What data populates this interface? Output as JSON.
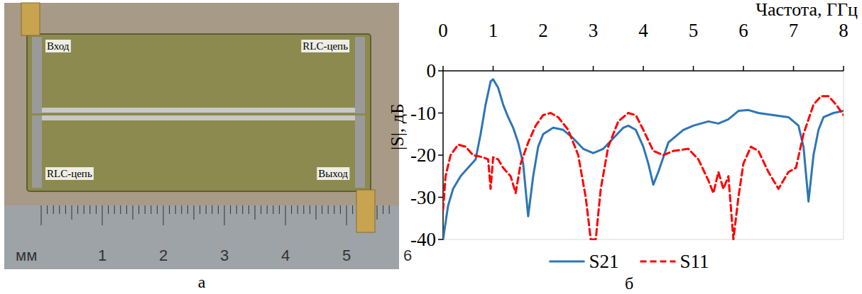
{
  "photo": {
    "panel_label": "а",
    "labels": [
      "Вход",
      "RLC-цепь",
      "RLC-цепь",
      "Выход"
    ],
    "ruler_labels": [
      "мм",
      "1",
      "2",
      "3",
      "4",
      "5",
      "6"
    ]
  },
  "chart_data": {
    "type": "line",
    "panel_label": "б",
    "x_label": "Частота, ГГц",
    "y_label": "|S|, дБ",
    "xlim": [
      0,
      8
    ],
    "xticks": [
      0,
      1,
      2,
      3,
      4,
      5,
      6,
      7,
      8
    ],
    "ylim": [
      -40,
      0
    ],
    "yticks": [
      0,
      -10,
      -20,
      -30,
      -40
    ],
    "grid": false,
    "legend": "bottom",
    "series": [
      {
        "name": "S21",
        "color": "#2e75b6",
        "line_style": "solid",
        "x": [
          0,
          0.1,
          0.2,
          0.35,
          0.5,
          0.65,
          0.75,
          0.85,
          0.95,
          1.0,
          1.1,
          1.2,
          1.3,
          1.4,
          1.5,
          1.6,
          1.7,
          1.8,
          1.9,
          2.0,
          2.2,
          2.4,
          2.6,
          2.8,
          3.0,
          3.2,
          3.4,
          3.6,
          3.7,
          3.85,
          4.0,
          4.1,
          4.2,
          4.3,
          4.5,
          4.8,
          5.0,
          5.3,
          5.5,
          5.7,
          5.9,
          6.1,
          6.3,
          6.6,
          6.9,
          7.1,
          7.2,
          7.3,
          7.4,
          7.5,
          7.6,
          7.8,
          8.0
        ],
        "values": [
          -40,
          -32,
          -28,
          -25,
          -23,
          -21,
          -15,
          -8,
          -2.5,
          -2,
          -4,
          -8,
          -11,
          -13.5,
          -17,
          -22,
          -34.5,
          -25,
          -18,
          -15,
          -13.5,
          -14,
          -16,
          -18.5,
          -19.5,
          -18.5,
          -16,
          -13.5,
          -13,
          -14,
          -18,
          -22,
          -27,
          -24,
          -17,
          -14,
          -13,
          -12,
          -12.5,
          -11.5,
          -9.5,
          -9.3,
          -10,
          -10.5,
          -11,
          -13,
          -18,
          -31,
          -20,
          -14,
          -11,
          -10,
          -9.5
        ]
      },
      {
        "name": "S11",
        "color": "#ff0000",
        "line_style": "dashed",
        "x": [
          0,
          0.05,
          0.15,
          0.3,
          0.45,
          0.6,
          0.8,
          0.9,
          0.95,
          1.0,
          1.1,
          1.2,
          1.35,
          1.45,
          1.55,
          1.7,
          1.85,
          2.0,
          2.15,
          2.3,
          2.5,
          2.7,
          2.85,
          2.95,
          3.05,
          3.15,
          3.3,
          3.5,
          3.7,
          3.85,
          4.0,
          4.2,
          4.4,
          4.6,
          4.9,
          5.1,
          5.3,
          5.4,
          5.5,
          5.6,
          5.7,
          5.8,
          5.9,
          6.0,
          6.15,
          6.3,
          6.5,
          6.7,
          6.9,
          7.05,
          7.2,
          7.4,
          7.55,
          7.7,
          7.85,
          8.0
        ],
        "values": [
          -33,
          -25,
          -20,
          -17.5,
          -18,
          -20,
          -20.5,
          -21,
          -28,
          -20.5,
          -21,
          -23,
          -25,
          -29,
          -22,
          -17,
          -13,
          -10.5,
          -10,
          -11,
          -14,
          -20,
          -30,
          -40,
          -40,
          -28,
          -18,
          -12,
          -10,
          -10.5,
          -14,
          -19,
          -20,
          -19,
          -18.5,
          -21,
          -26,
          -29,
          -24,
          -28,
          -25,
          -40,
          -30,
          -22,
          -18,
          -19,
          -24,
          -28,
          -24,
          -23,
          -15,
          -8,
          -6,
          -6,
          -8,
          -10.5
        ]
      }
    ]
  }
}
